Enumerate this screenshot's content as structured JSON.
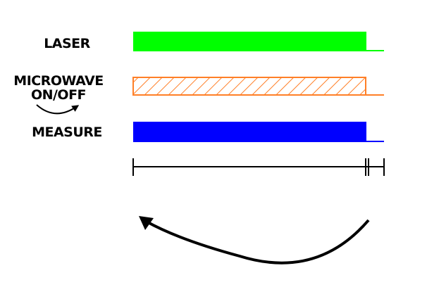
{
  "labels": {
    "laser": "LASER",
    "microwave_line1": "MICROWAVE",
    "microwave_line2": "ON/OFF",
    "measure": "MEASURE"
  },
  "colors": {
    "laser": "#00ff00",
    "microwave": "#ff7f27",
    "measure": "#0000ff",
    "timeline": "#000000",
    "arrow": "#000000"
  }
}
